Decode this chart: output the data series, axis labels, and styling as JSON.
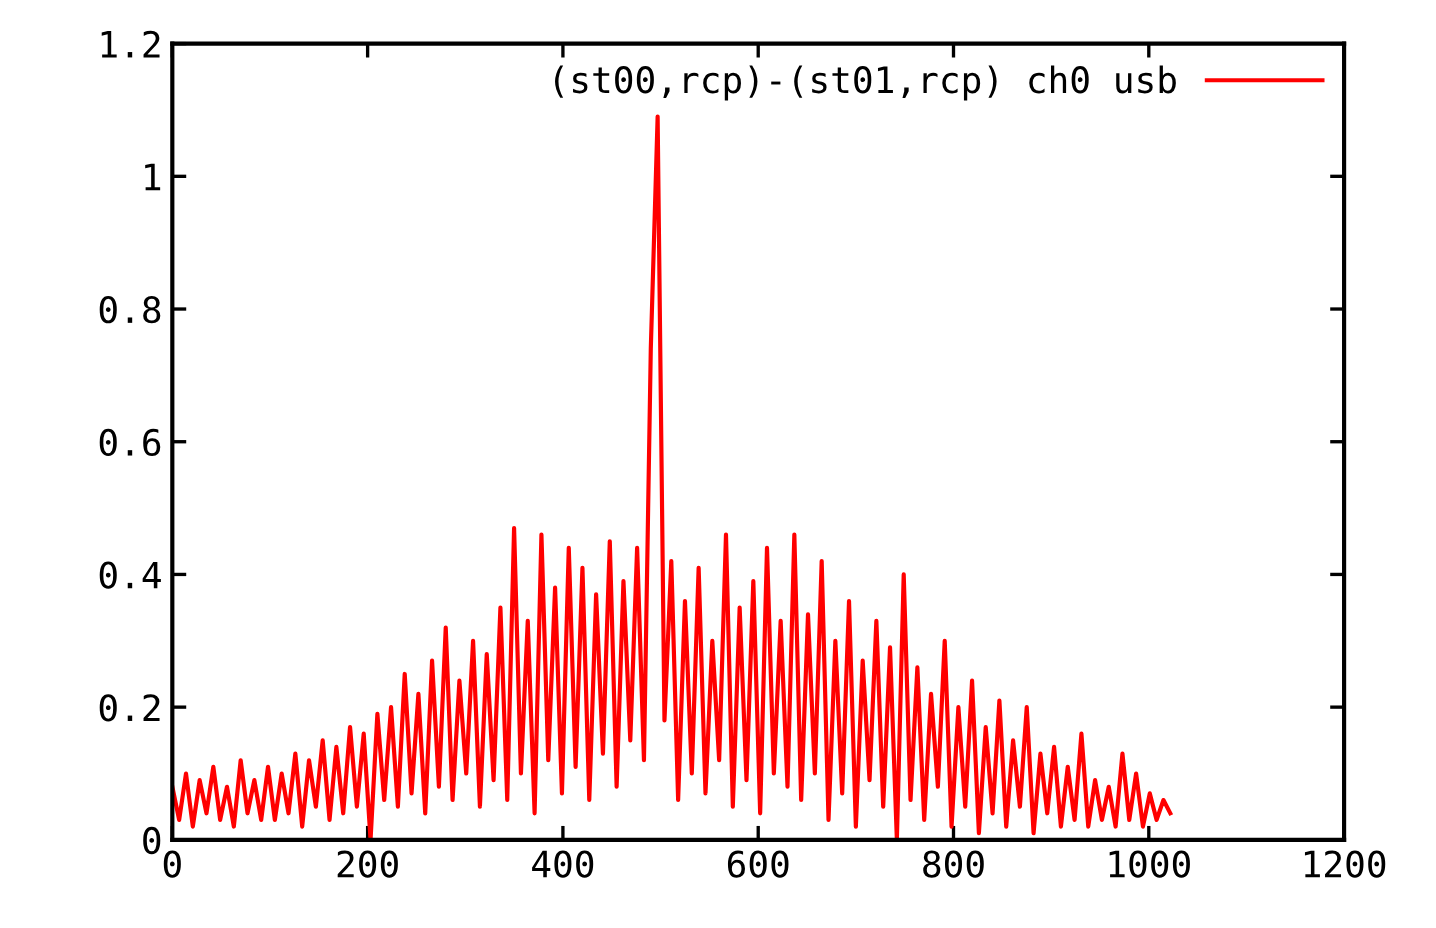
{
  "chart_data": {
    "type": "line",
    "x": [
      0,
      7,
      14,
      21,
      28,
      35,
      42,
      49,
      56,
      63,
      70,
      77,
      84,
      91,
      98,
      105,
      112,
      119,
      126,
      133,
      140,
      147,
      154,
      161,
      168,
      175,
      182,
      189,
      196,
      203,
      210,
      217,
      224,
      231,
      238,
      245,
      252,
      259,
      266,
      273,
      280,
      287,
      294,
      301,
      308,
      315,
      322,
      329,
      336,
      343,
      350,
      357,
      364,
      371,
      378,
      385,
      392,
      399,
      406,
      413,
      420,
      427,
      434,
      441,
      448,
      455,
      462,
      469,
      476,
      483,
      490,
      497,
      504,
      511,
      518,
      525,
      532,
      539,
      546,
      553,
      560,
      567,
      574,
      581,
      588,
      595,
      602,
      609,
      616,
      623,
      630,
      637,
      644,
      651,
      658,
      665,
      672,
      679,
      686,
      693,
      700,
      707,
      714,
      721,
      728,
      735,
      742,
      749,
      756,
      763,
      770,
      777,
      784,
      791,
      798,
      805,
      812,
      819,
      826,
      833,
      840,
      847,
      854,
      861,
      868,
      875,
      882,
      889,
      896,
      903,
      910,
      917,
      924,
      931,
      938,
      945,
      952,
      959,
      966,
      973,
      980,
      987,
      994,
      1001,
      1008,
      1015,
      1022
    ],
    "series": [
      {
        "name": "(st00,rcp)-(st01,rcp) ch0 usb",
        "color": "#ff0000",
        "values": [
          0.08,
          0.03,
          0.1,
          0.02,
          0.09,
          0.04,
          0.11,
          0.03,
          0.08,
          0.02,
          0.12,
          0.04,
          0.09,
          0.03,
          0.11,
          0.03,
          0.1,
          0.04,
          0.13,
          0.02,
          0.12,
          0.05,
          0.15,
          0.03,
          0.14,
          0.04,
          0.17,
          0.05,
          0.16,
          0.0,
          0.19,
          0.06,
          0.2,
          0.05,
          0.25,
          0.07,
          0.22,
          0.04,
          0.27,
          0.08,
          0.32,
          0.06,
          0.24,
          0.1,
          0.3,
          0.05,
          0.28,
          0.09,
          0.35,
          0.06,
          0.47,
          0.1,
          0.33,
          0.04,
          0.46,
          0.12,
          0.38,
          0.07,
          0.44,
          0.11,
          0.41,
          0.06,
          0.37,
          0.13,
          0.45,
          0.08,
          0.39,
          0.15,
          0.44,
          0.12,
          0.74,
          1.09,
          0.18,
          0.42,
          0.06,
          0.36,
          0.1,
          0.41,
          0.07,
          0.3,
          0.12,
          0.46,
          0.05,
          0.35,
          0.09,
          0.39,
          0.04,
          0.44,
          0.1,
          0.33,
          0.08,
          0.46,
          0.06,
          0.34,
          0.1,
          0.42,
          0.03,
          0.3,
          0.07,
          0.36,
          0.02,
          0.27,
          0.09,
          0.33,
          0.05,
          0.29,
          0.0,
          0.4,
          0.06,
          0.26,
          0.03,
          0.22,
          0.08,
          0.3,
          0.02,
          0.2,
          0.05,
          0.24,
          0.01,
          0.17,
          0.04,
          0.21,
          0.02,
          0.15,
          0.05,
          0.2,
          0.01,
          0.13,
          0.04,
          0.14,
          0.02,
          0.11,
          0.03,
          0.16,
          0.02,
          0.09,
          0.03,
          0.08,
          0.02,
          0.13,
          0.03,
          0.1,
          0.02,
          0.07,
          0.03,
          0.06,
          0.04
        ]
      }
    ],
    "xlim": [
      0,
      1200
    ],
    "xticks": [
      0,
      200,
      400,
      600,
      800,
      1000,
      1200
    ],
    "ylim": [
      0,
      1.2
    ],
    "yticks": [
      0,
      0.2,
      0.4,
      0.6,
      0.8,
      1,
      1.2
    ],
    "legend": "top right"
  }
}
